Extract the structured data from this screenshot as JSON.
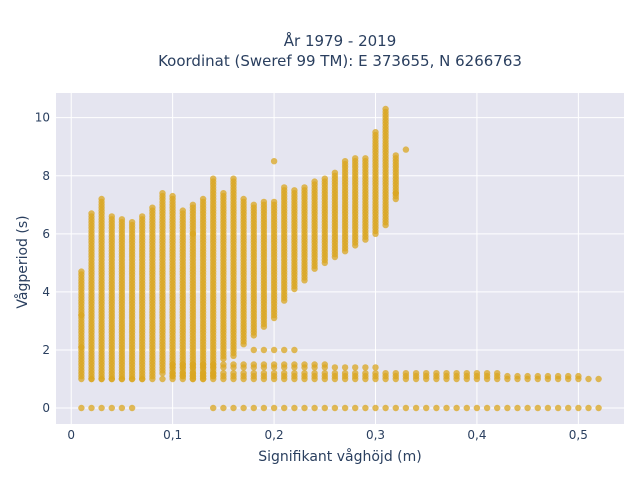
{
  "chart_data": {
    "type": "scatter",
    "title_line1": "År 1979 - 2019",
    "title_line2": "Koordinat (Sweref 99 TM): E 373655, N 6266763",
    "xlabel": "Signifikant våghöjd (m)",
    "ylabel": "Vågperiod (s)",
    "xlim": [
      -0.015,
      0.545
    ],
    "ylim": [
      -0.55,
      10.85
    ],
    "x_ticks": [
      {
        "value": 0,
        "label": "0"
      },
      {
        "value": 0.1,
        "label": "0,1"
      },
      {
        "value": 0.2,
        "label": "0,2"
      },
      {
        "value": 0.3,
        "label": "0,3"
      },
      {
        "value": 0.4,
        "label": "0,4"
      },
      {
        "value": 0.5,
        "label": "0,5"
      }
    ],
    "y_ticks": [
      {
        "value": 0,
        "label": "0"
      },
      {
        "value": 2,
        "label": "2"
      },
      {
        "value": 4,
        "label": "4"
      },
      {
        "value": 6,
        "label": "6"
      },
      {
        "value": 8,
        "label": "8"
      },
      {
        "value": 10,
        "label": "10"
      }
    ],
    "grid": true,
    "marker_color": "#DAA520",
    "background_color": "#E5E5F0",
    "columns": [
      {
        "x": 0.01,
        "ymin": 1.1,
        "ymax": 4.7
      },
      {
        "x": 0.02,
        "ymin": 1.0,
        "ymax": 6.7
      },
      {
        "x": 0.03,
        "ymin": 1.0,
        "ymax": 7.2
      },
      {
        "x": 0.04,
        "ymin": 1.0,
        "ymax": 6.6
      },
      {
        "x": 0.05,
        "ymin": 1.0,
        "ymax": 6.5
      },
      {
        "x": 0.06,
        "ymin": 1.0,
        "ymax": 6.4
      },
      {
        "x": 0.07,
        "ymin": 1.0,
        "ymax": 6.6
      },
      {
        "x": 0.08,
        "ymin": 1.1,
        "ymax": 6.9
      },
      {
        "x": 0.09,
        "ymin": 1.2,
        "ymax": 7.4
      },
      {
        "x": 0.1,
        "ymin": 1.1,
        "ymax": 7.3
      },
      {
        "x": 0.11,
        "ymin": 1.1,
        "ymax": 6.8
      },
      {
        "x": 0.12,
        "ymin": 1.0,
        "ymax": 7.0
      },
      {
        "x": 0.13,
        "ymin": 1.0,
        "ymax": 7.2
      },
      {
        "x": 0.14,
        "ymin": 1.1,
        "ymax": 7.9
      },
      {
        "x": 0.15,
        "ymin": 1.7,
        "ymax": 7.4
      },
      {
        "x": 0.16,
        "ymin": 1.8,
        "ymax": 7.9
      },
      {
        "x": 0.17,
        "ymin": 2.2,
        "ymax": 7.2
      },
      {
        "x": 0.18,
        "ymin": 2.5,
        "ymax": 7.0
      },
      {
        "x": 0.19,
        "ymin": 2.8,
        "ymax": 7.1
      },
      {
        "x": 0.2,
        "ymin": 3.1,
        "ymax": 7.1
      },
      {
        "x": 0.21,
        "ymin": 3.7,
        "ymax": 7.6
      },
      {
        "x": 0.22,
        "ymin": 4.1,
        "ymax": 7.5
      },
      {
        "x": 0.23,
        "ymin": 4.4,
        "ymax": 7.6
      },
      {
        "x": 0.24,
        "ymin": 4.8,
        "ymax": 7.8
      },
      {
        "x": 0.25,
        "ymin": 5.0,
        "ymax": 7.9
      },
      {
        "x": 0.26,
        "ymin": 5.2,
        "ymax": 8.1
      },
      {
        "x": 0.27,
        "ymin": 5.4,
        "ymax": 8.5
      },
      {
        "x": 0.28,
        "ymin": 5.6,
        "ymax": 8.6
      },
      {
        "x": 0.29,
        "ymin": 5.8,
        "ymax": 8.6
      },
      {
        "x": 0.3,
        "ymin": 6.0,
        "ymax": 9.5
      },
      {
        "x": 0.31,
        "ymin": 6.3,
        "ymax": 10.3
      },
      {
        "x": 0.32,
        "ymin": 7.2,
        "ymax": 8.7
      }
    ],
    "rows": [
      {
        "y": 1.0,
        "xmin": 0.01,
        "xmax": 0.52
      },
      {
        "y": 1.1,
        "xmin": 0.1,
        "xmax": 0.5
      },
      {
        "y": 1.2,
        "xmin": 0.1,
        "xmax": 0.42
      },
      {
        "y": 1.4,
        "xmin": 0.1,
        "xmax": 0.3
      },
      {
        "y": 1.5,
        "xmin": 0.1,
        "xmax": 0.25
      },
      {
        "y": 2.0,
        "xmin": 0.18,
        "xmax": 0.22
      },
      {
        "y": 0.0,
        "xmin": 0.01,
        "xmax": 0.06
      },
      {
        "y": 0.0,
        "xmin": 0.14,
        "xmax": 0.52
      }
    ],
    "outliers": [
      {
        "x": 0.2,
        "y": 8.5
      },
      {
        "x": 0.33,
        "y": 8.9
      },
      {
        "x": 0.32,
        "y": 7.4
      },
      {
        "x": 0.12,
        "y": 6.0
      },
      {
        "x": 0.01,
        "y": 2.1
      },
      {
        "x": 0.01,
        "y": 3.2
      }
    ]
  }
}
